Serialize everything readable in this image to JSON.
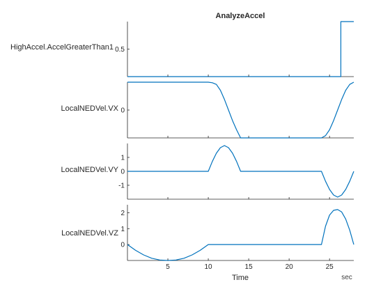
{
  "chart_data": {
    "type": "line",
    "title": "AnalyzeAccel",
    "xlabel": "Time",
    "x_unit": "sec",
    "xlim": [
      0,
      28
    ],
    "xticks": [
      5,
      10,
      15,
      20,
      25
    ],
    "line_color": "#0072BD",
    "panels": [
      {
        "ylabel": "HighAccel.AccelGreaterThan1",
        "ylim": [
          0,
          1
        ],
        "yticks": [
          {
            "value": 0.5,
            "label": "0.5"
          }
        ],
        "series": [
          {
            "x": [
              0,
              26.4,
              26.4,
              28
            ],
            "y": [
              0,
              0,
              1,
              1
            ]
          }
        ]
      },
      {
        "ylabel": "LocalNEDVel.VX",
        "ylim": [
          -1,
          1
        ],
        "yticks": [
          {
            "value": 0,
            "label": "0"
          }
        ],
        "series": [
          {
            "x": [
              0,
              10,
              10.5,
              11,
              11.5,
              12,
              12.5,
              13,
              13.5,
              14,
              24,
              24.5,
              25,
              25.5,
              26,
              26.5,
              27,
              27.5,
              28
            ],
            "y": [
              1,
              1,
              0.98,
              0.92,
              0.71,
              0.38,
              0,
              -0.38,
              -0.71,
              -1,
              -1,
              -0.92,
              -0.71,
              -0.38,
              0,
              0.38,
              0.71,
              0.92,
              1
            ]
          }
        ]
      },
      {
        "ylabel": "LocalNEDVel.VY",
        "ylim": [
          -2,
          2
        ],
        "yticks": [
          {
            "value": -1,
            "label": "-1"
          },
          {
            "value": 0,
            "label": "0"
          },
          {
            "value": 1,
            "label": "1"
          }
        ],
        "series": [
          {
            "x": [
              0,
              10,
              10.5,
              11,
              11.5,
              12,
              12.5,
              13,
              13.5,
              14,
              24,
              24.5,
              25,
              25.5,
              26,
              26.5,
              27,
              27.5,
              28
            ],
            "y": [
              0,
              0,
              0.71,
              1.3,
              1.7,
              1.85,
              1.7,
              1.3,
              0.71,
              0,
              0,
              -0.71,
              -1.3,
              -1.7,
              -1.85,
              -1.7,
              -1.3,
              -0.71,
              0
            ]
          }
        ]
      },
      {
        "ylabel": "LocalNEDVel.VZ",
        "ylim": [
          -1,
          2.5
        ],
        "yticks": [
          {
            "value": 0,
            "label": "0"
          },
          {
            "value": 1,
            "label": "1"
          },
          {
            "value": 2,
            "label": "2"
          }
        ],
        "series": [
          {
            "x": [
              0,
              1,
              2,
              3,
              4,
              5,
              6,
              7,
              8,
              9,
              10,
              24,
              24.5,
              25,
              25.5,
              26,
              26.5,
              27,
              27.5,
              28
            ],
            "y": [
              0,
              -0.36,
              -0.65,
              -0.86,
              -0.97,
              -1.0,
              -0.97,
              -0.86,
              -0.65,
              -0.36,
              0,
              0,
              1.15,
              1.85,
              2.15,
              2.2,
              2.05,
              1.6,
              0.9,
              0
            ]
          }
        ]
      }
    ]
  }
}
